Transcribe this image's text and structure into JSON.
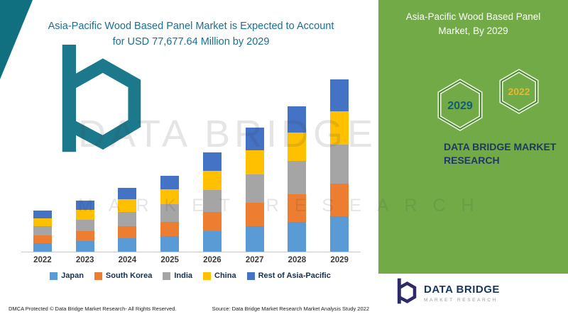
{
  "chart_title": {
    "line1": "Asia-Pacific Wood Based Panel Market is Expected to Account",
    "line2": "for USD 77,677.64 Million by 2029"
  },
  "footer": {
    "dmca": "DMCA Protected © Data Bridge Market Research- All Rights Reserved.",
    "source": "Source: Data Bridge Market Research Market Analysis Study 2022"
  },
  "watermark": {
    "line1": "DATA BRIDGE",
    "line2": "MARKET RESEARCH"
  },
  "side_panel": {
    "title": "Asia-Pacific Wood Based Panel Market, By 2029",
    "bg_color": "#71aa46",
    "badges": [
      {
        "year": "2029",
        "text_color": "#115e75"
      },
      {
        "year": "2022",
        "text_color": "#f0b429"
      }
    ],
    "brand_line1": "DATA BRIDGE MARKET",
    "brand_line2": "RESEARCH"
  },
  "logo": {
    "name": "DATA BRIDGE",
    "tagline": "MARKET RESEARCH"
  },
  "colors": {
    "accent_teal": "#11707f",
    "title_blue": "#1a6f91",
    "brand_navy": "#1f3864",
    "panel_green": "#71aa46"
  },
  "chart_data": {
    "type": "bar",
    "stacked": true,
    "title": "Asia-Pacific Wood Based Panel Market is Expected to Account for USD 77,677.64 Million by 2029",
    "unit": "USD Million",
    "legend_position": "bottom",
    "grid": false,
    "ylim": [
      0,
      80000
    ],
    "categories": [
      "2022",
      "2023",
      "2024",
      "2025",
      "2026",
      "2027",
      "2028",
      "2029"
    ],
    "series": [
      {
        "name": "Japan",
        "color": "#5b9bd5",
        "values": [
          3900,
          4800,
          6000,
          7100,
          9300,
          11600,
          13600,
          16100
        ]
      },
      {
        "name": "South Korea",
        "color": "#ed7d31",
        "values": [
          3500,
          4400,
          5500,
          6500,
          8500,
          10600,
          12400,
          14700
        ]
      },
      {
        "name": "India",
        "color": "#a5a5a5",
        "values": [
          4200,
          5200,
          6500,
          7700,
          10100,
          12600,
          14800,
          17500
        ]
      },
      {
        "name": "China",
        "color": "#ffc000",
        "values": [
          3600,
          4500,
          5600,
          6700,
          8700,
          10900,
          12800,
          15100
        ]
      },
      {
        "name": "Rest of Asia-Pacific",
        "color": "#4472c4",
        "values": [
          3300,
          4100,
          5200,
          6300,
          8200,
          10300,
          12000,
          14277.64
        ]
      }
    ],
    "total_2029": 77677.64
  }
}
